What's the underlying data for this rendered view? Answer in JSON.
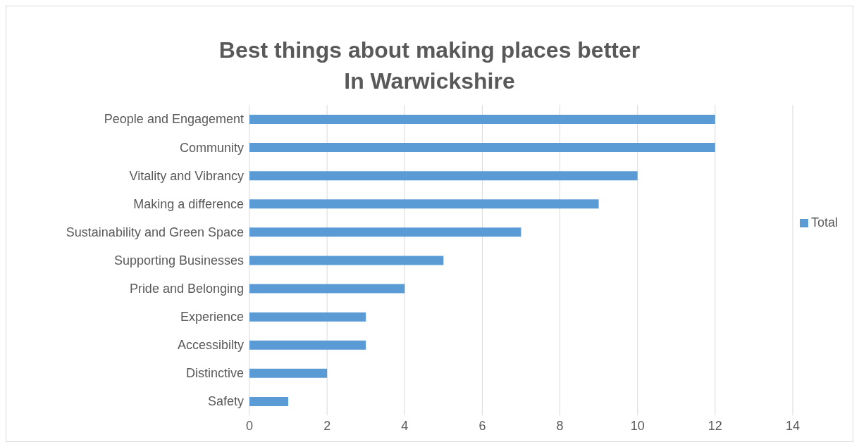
{
  "chart_data": {
    "type": "bar",
    "orientation": "horizontal",
    "title": "Best things about making places better\nIn Warwickshire",
    "categories": [
      "People and Engagement",
      "Community",
      "Vitality and Vibrancy",
      "Making a difference",
      "Sustainability and Green Space",
      "Supporting Businesses",
      "Pride and Belonging",
      "Experience",
      "Accessibilty",
      "Distinctive",
      "Safety"
    ],
    "series": [
      {
        "name": "Total",
        "color": "#5b9bd5",
        "values": [
          12,
          12,
          10,
          9,
          7,
          5,
          4,
          3,
          3,
          2,
          1
        ]
      }
    ],
    "xlim": [
      0,
      14
    ],
    "xticks": [
      0,
      2,
      4,
      6,
      8,
      10,
      12,
      14
    ],
    "grid": "x",
    "legend": "right"
  }
}
